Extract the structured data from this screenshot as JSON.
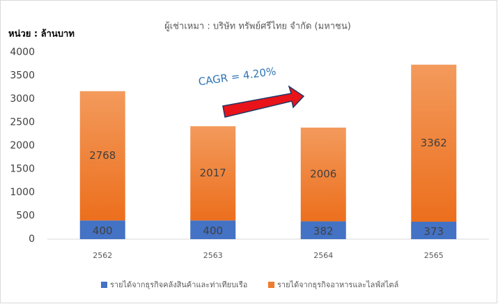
{
  "chart_data": {
    "type": "stacked_bar",
    "title": "ผู้เช่าเหมา : บริษัท ทรัพย์ศรีไทย จำกัด (มหาชน)",
    "y_label": "หน่วย : ล้านบาท",
    "annotation": "CAGR = 4.20%",
    "categories": [
      "2562",
      "2563",
      "2564",
      "2565"
    ],
    "series": [
      {
        "name": "รายได้จากธุรกิจคลังสินค้าและท่าเทียบเรือ",
        "color": "#4472c4",
        "values": [
          400,
          400,
          382,
          373
        ]
      },
      {
        "name": "รายได้จากธุรกิจอาหารและไลฟ์สไตล์",
        "color": "#ef7b2e",
        "values": [
          2768,
          2017,
          2006,
          3362
        ]
      }
    ],
    "ylim": [
      0,
      4000
    ],
    "yticks": [
      0,
      500,
      1000,
      1500,
      2000,
      2500,
      3000,
      3500,
      4000
    ],
    "grid": false,
    "legend": "bottom"
  }
}
